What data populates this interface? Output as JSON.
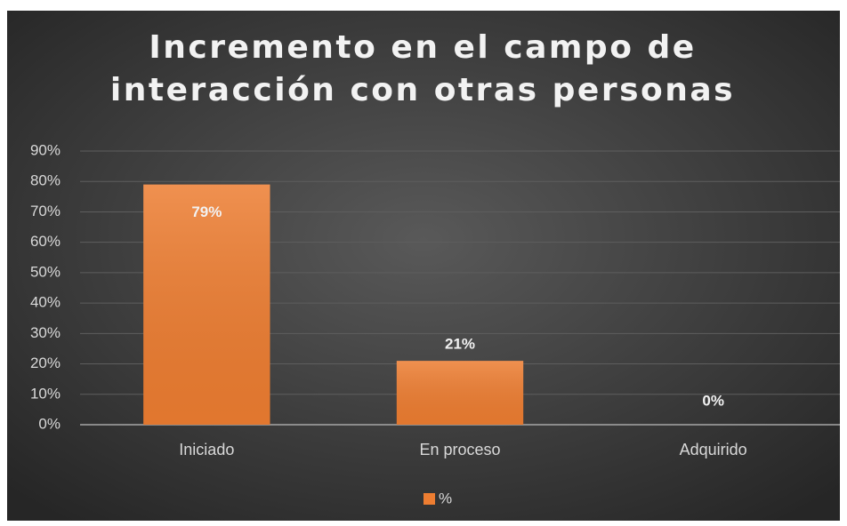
{
  "chart_data": {
    "type": "bar",
    "title": "Incremento en el campo de interacción con otras personas",
    "categories": [
      "Iniciado",
      "En proceso",
      "Adquirido"
    ],
    "series": [
      {
        "name": "%",
        "color": "#ed7d31",
        "values": [
          79,
          21,
          0
        ],
        "value_labels": [
          "79%",
          "21%",
          "0%"
        ]
      }
    ],
    "ylim": [
      0,
      90
    ],
    "yticks": [
      {
        "value": 0,
        "label": "0%"
      },
      {
        "value": 10,
        "label": "10%"
      },
      {
        "value": 20,
        "label": "20%"
      },
      {
        "value": 30,
        "label": "30%"
      },
      {
        "value": 40,
        "label": "40%"
      },
      {
        "value": 50,
        "label": "50%"
      },
      {
        "value": 60,
        "label": "60%"
      },
      {
        "value": 70,
        "label": "70%"
      },
      {
        "value": 80,
        "label": "80%"
      },
      {
        "value": 90,
        "label": "90%"
      }
    ],
    "grid": true,
    "legend": "bottom"
  }
}
